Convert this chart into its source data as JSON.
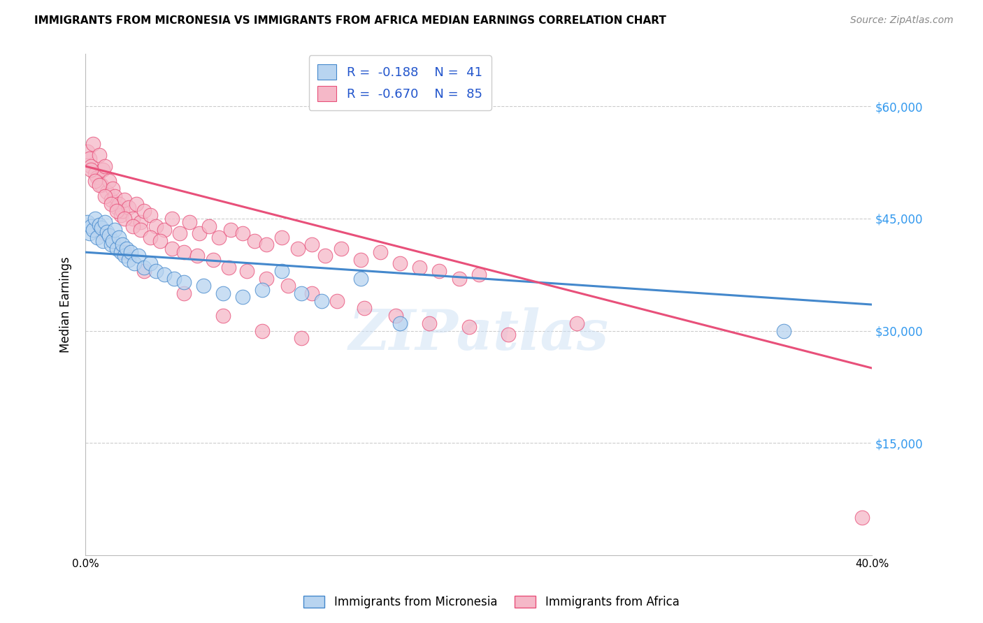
{
  "title": "IMMIGRANTS FROM MICRONESIA VS IMMIGRANTS FROM AFRICA MEDIAN EARNINGS CORRELATION CHART",
  "source": "Source: ZipAtlas.com",
  "ylabel": "Median Earnings",
  "xlim": [
    0.0,
    0.4
  ],
  "ylim": [
    0,
    67000
  ],
  "xticks": [
    0.0,
    0.05,
    0.1,
    0.15,
    0.2,
    0.25,
    0.3,
    0.35,
    0.4
  ],
  "xticklabels": [
    "0.0%",
    "",
    "",
    "",
    "",
    "",
    "",
    "",
    "40.0%"
  ],
  "yticks_right": [
    15000,
    30000,
    45000,
    60000
  ],
  "ytick_labels_right": [
    "$15,000",
    "$30,000",
    "$45,000",
    "$60,000"
  ],
  "legend_R1": "R =  -0.188",
  "legend_N1": "N =  41",
  "legend_R2": "R =  -0.670",
  "legend_N2": "N =  85",
  "color_micronesia": "#b8d4f0",
  "color_africa": "#f5b8c8",
  "line_color_micronesia": "#4488cc",
  "line_color_africa": "#e8507a",
  "watermark": "ZIPatlas",
  "mic_trend_x": [
    0.0,
    0.4
  ],
  "mic_trend_y": [
    40500,
    33500
  ],
  "afr_trend_x": [
    0.0,
    0.4
  ],
  "afr_trend_y": [
    52000,
    25000
  ],
  "micronesia_x": [
    0.001,
    0.002,
    0.003,
    0.004,
    0.005,
    0.006,
    0.007,
    0.008,
    0.009,
    0.01,
    0.011,
    0.012,
    0.013,
    0.014,
    0.015,
    0.016,
    0.017,
    0.018,
    0.019,
    0.02,
    0.021,
    0.022,
    0.023,
    0.025,
    0.027,
    0.03,
    0.033,
    0.036,
    0.04,
    0.045,
    0.05,
    0.06,
    0.07,
    0.08,
    0.09,
    0.1,
    0.11,
    0.12,
    0.14,
    0.16,
    0.355
  ],
  "micronesia_y": [
    44500,
    43000,
    44000,
    43500,
    45000,
    42500,
    44200,
    43800,
    42000,
    44500,
    43200,
    42800,
    41500,
    42000,
    43500,
    41000,
    42500,
    40500,
    41500,
    40000,
    41000,
    39500,
    40500,
    39000,
    40000,
    38500,
    39000,
    38000,
    37500,
    37000,
    36500,
    36000,
    35000,
    34500,
    35500,
    38000,
    35000,
    34000,
    37000,
    31000,
    30000
  ],
  "africa_x": [
    0.001,
    0.002,
    0.003,
    0.004,
    0.005,
    0.006,
    0.007,
    0.008,
    0.009,
    0.01,
    0.011,
    0.012,
    0.013,
    0.014,
    0.015,
    0.016,
    0.017,
    0.018,
    0.019,
    0.02,
    0.022,
    0.024,
    0.026,
    0.028,
    0.03,
    0.033,
    0.036,
    0.04,
    0.044,
    0.048,
    0.053,
    0.058,
    0.063,
    0.068,
    0.074,
    0.08,
    0.086,
    0.092,
    0.1,
    0.108,
    0.115,
    0.122,
    0.13,
    0.14,
    0.15,
    0.16,
    0.17,
    0.18,
    0.19,
    0.2,
    0.003,
    0.005,
    0.007,
    0.01,
    0.013,
    0.016,
    0.02,
    0.024,
    0.028,
    0.033,
    0.038,
    0.044,
    0.05,
    0.057,
    0.065,
    0.073,
    0.082,
    0.092,
    0.103,
    0.115,
    0.128,
    0.142,
    0.158,
    0.175,
    0.195,
    0.215,
    0.01,
    0.02,
    0.03,
    0.05,
    0.07,
    0.09,
    0.11,
    0.25,
    0.395
  ],
  "africa_y": [
    54000,
    53000,
    52000,
    55000,
    51000,
    50500,
    53500,
    49500,
    51500,
    52000,
    48500,
    50000,
    47500,
    49000,
    48000,
    46500,
    47000,
    45500,
    46000,
    47500,
    46500,
    45000,
    47000,
    44500,
    46000,
    45500,
    44000,
    43500,
    45000,
    43000,
    44500,
    43000,
    44000,
    42500,
    43500,
    43000,
    42000,
    41500,
    42500,
    41000,
    41500,
    40000,
    41000,
    39500,
    40500,
    39000,
    38500,
    38000,
    37000,
    37500,
    51500,
    50000,
    49500,
    48000,
    47000,
    46000,
    45000,
    44000,
    43500,
    42500,
    42000,
    41000,
    40500,
    40000,
    39500,
    38500,
    38000,
    37000,
    36000,
    35000,
    34000,
    33000,
    32000,
    31000,
    30500,
    29500,
    43000,
    40500,
    38000,
    35000,
    32000,
    30000,
    29000,
    31000,
    5000
  ]
}
